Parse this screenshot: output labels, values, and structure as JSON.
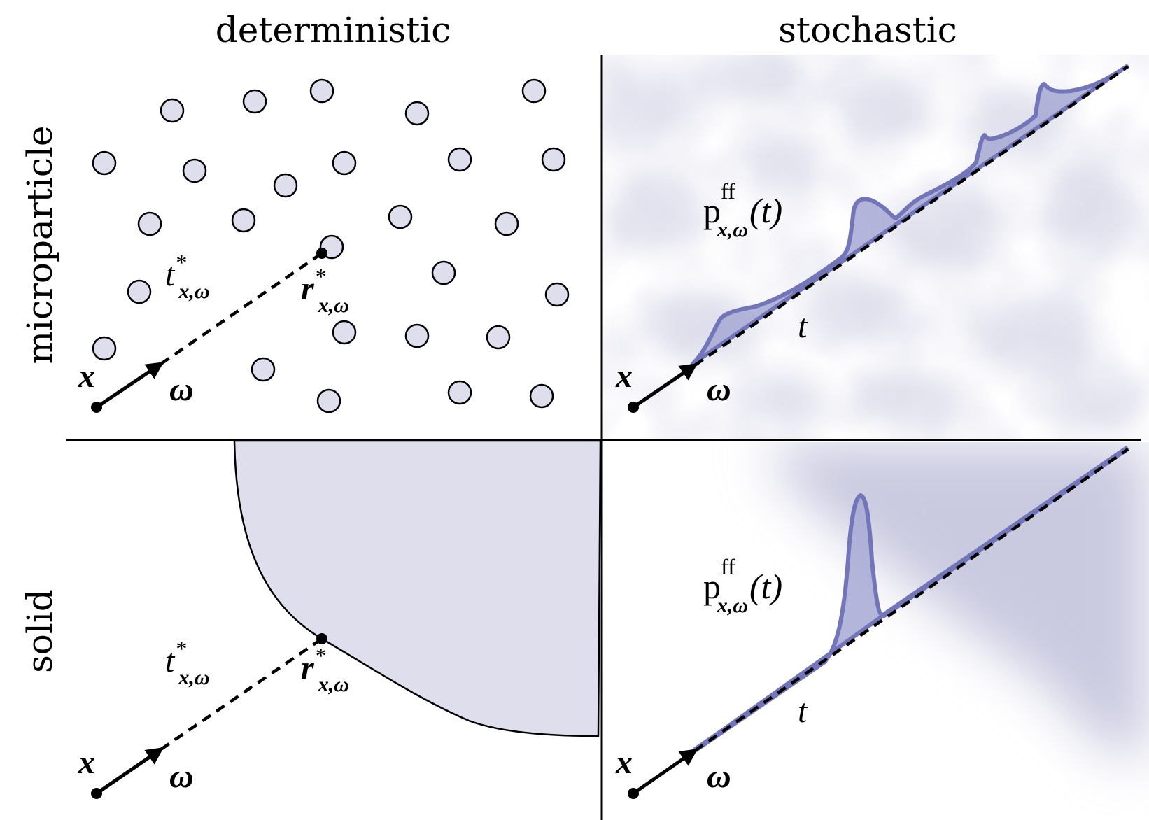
{
  "headers": {
    "columns": [
      "deterministic",
      "stochastic"
    ],
    "rows": [
      "microparticle",
      "solid"
    ]
  },
  "labels": {
    "origin": "x",
    "direction": "ω",
    "hit_distance_base": "t",
    "hit_distance_sup": "*",
    "hit_distance_sub": "x,ω",
    "hit_point_base": "r",
    "hit_point_sup": "*",
    "hit_point_sub": "x,ω",
    "free_flight_base": "p",
    "free_flight_sup": "ff",
    "free_flight_sub": "x,ω",
    "free_flight_arg": "(t)",
    "distance": "t"
  },
  "colors": {
    "fill": "#dcdcec",
    "curve": "#7276b8",
    "curve_fill": "#a6a8d4",
    "ink": "#000000"
  }
}
